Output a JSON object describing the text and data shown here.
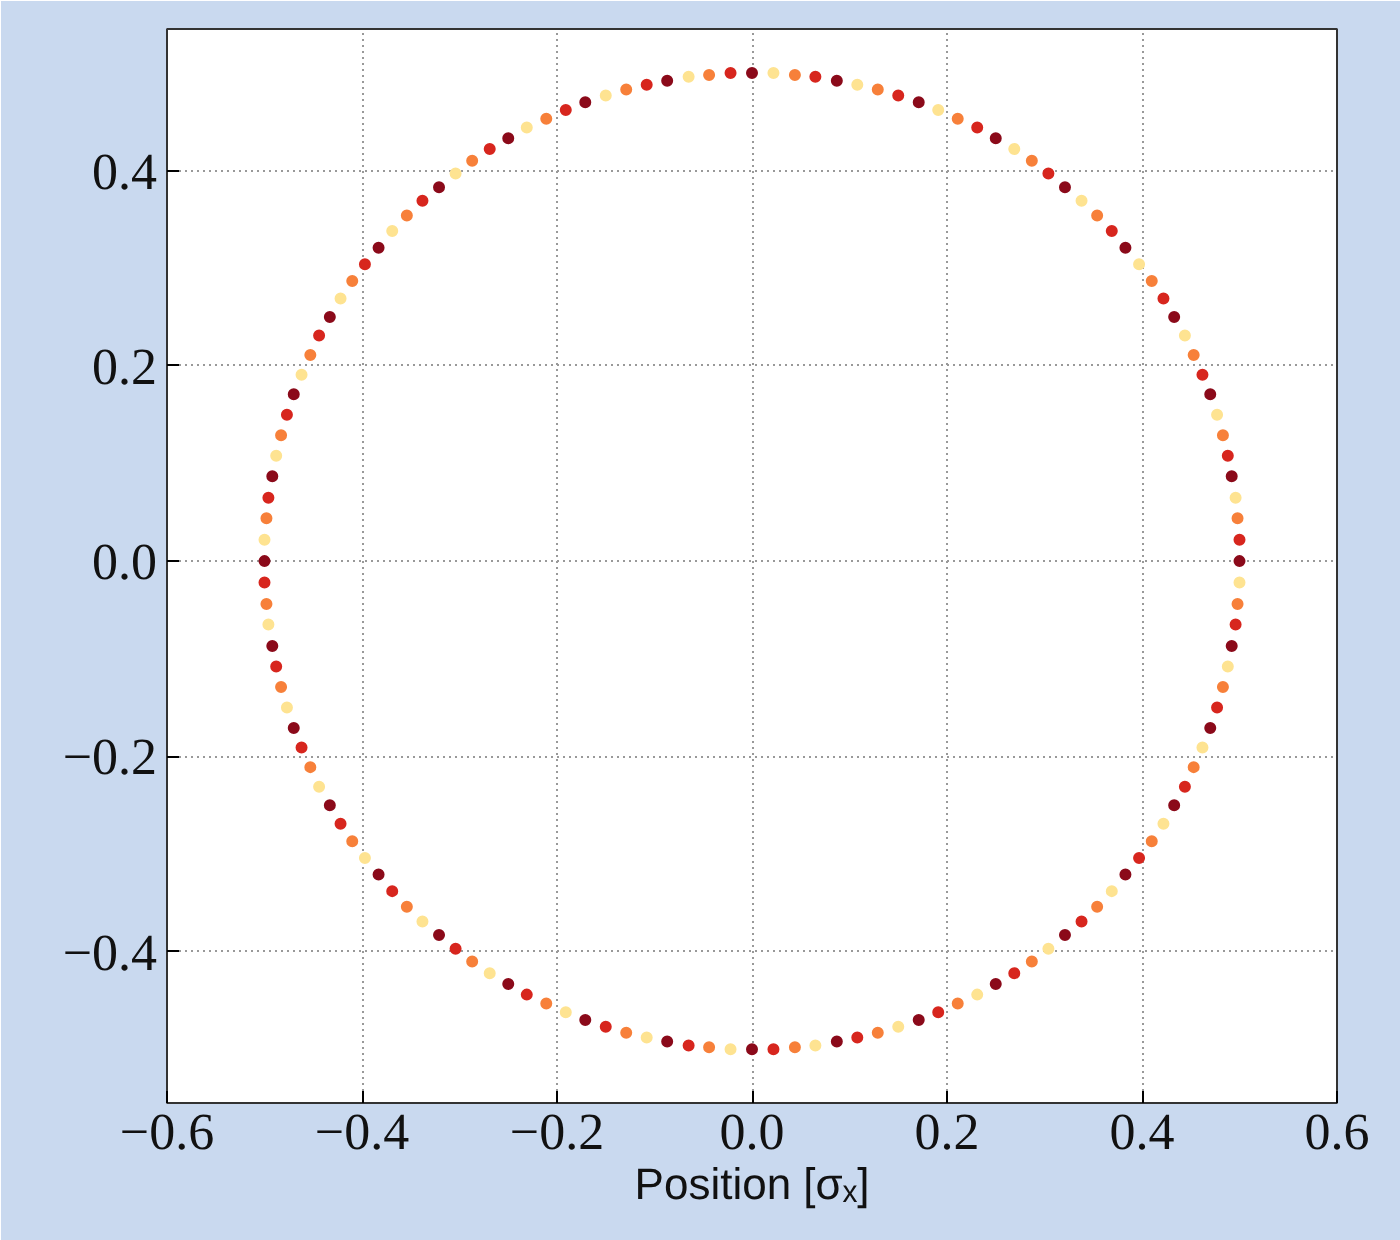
{
  "chart_data": {
    "type": "scatter",
    "xlabel": "Position [σₓ]",
    "xlim": [
      -0.6,
      0.6
    ],
    "ylim": [
      -0.555,
      0.545
    ],
    "xticks": [
      {
        "value": -0.6,
        "label": "−0.6"
      },
      {
        "value": -0.4,
        "label": "−0.4"
      },
      {
        "value": -0.2,
        "label": "−0.2"
      },
      {
        "value": 0.0,
        "label": "0.0"
      },
      {
        "value": 0.2,
        "label": "0.2"
      },
      {
        "value": 0.4,
        "label": "0.4"
      },
      {
        "value": 0.6,
        "label": "0.6"
      }
    ],
    "yticks": [
      {
        "value": -0.4,
        "label": "−0.4"
      },
      {
        "value": -0.2,
        "label": "−0.2"
      },
      {
        "value": 0.0,
        "label": "0.0"
      },
      {
        "value": 0.2,
        "label": "0.2"
      },
      {
        "value": 0.4,
        "label": "0.4"
      }
    ],
    "grid": true,
    "marker": "circle",
    "series": [
      {
        "color": "#fee391",
        "x": [
          0.496,
          0.477,
          0.444,
          0.397,
          0.338,
          0.269,
          0.191,
          0.108,
          0.022,
          -0.065,
          -0.15,
          -0.231,
          -0.304,
          -0.369,
          -0.422,
          -0.462,
          -0.488,
          -0.5,
          -0.496,
          -0.477,
          -0.444,
          -0.397,
          -0.338,
          -0.269,
          -0.191,
          -0.108,
          -0.022,
          0.065,
          0.15,
          0.231,
          0.304,
          0.369,
          0.422,
          0.462,
          0.488,
          0.5
        ],
        "values": [
          0.065,
          0.15,
          0.231,
          0.304,
          0.369,
          0.422,
          0.462,
          0.488,
          0.5,
          0.496,
          0.477,
          0.444,
          0.397,
          0.338,
          0.269,
          0.191,
          0.108,
          0.022,
          -0.065,
          -0.15,
          -0.231,
          -0.304,
          -0.369,
          -0.422,
          -0.462,
          -0.488,
          -0.5,
          -0.496,
          -0.477,
          -0.444,
          -0.397,
          -0.338,
          -0.269,
          -0.191,
          -0.108,
          -0.022
        ]
      },
      {
        "color": "#f7803a",
        "x": [
          0.498,
          0.483,
          0.453,
          0.41,
          0.354,
          0.287,
          0.211,
          0.129,
          0.044,
          -0.044,
          -0.129,
          -0.211,
          -0.287,
          -0.354,
          -0.41,
          -0.453,
          -0.483,
          -0.498,
          -0.498,
          -0.483,
          -0.453,
          -0.41,
          -0.354,
          -0.287,
          -0.211,
          -0.129,
          -0.044,
          0.044,
          0.129,
          0.211,
          0.287,
          0.354,
          0.41,
          0.453,
          0.483,
          0.498
        ],
        "values": [
          0.044,
          0.129,
          0.211,
          0.287,
          0.354,
          0.41,
          0.453,
          0.483,
          0.498,
          0.498,
          0.483,
          0.453,
          0.41,
          0.354,
          0.287,
          0.211,
          0.129,
          0.044,
          -0.044,
          -0.129,
          -0.211,
          -0.287,
          -0.354,
          -0.41,
          -0.453,
          -0.483,
          -0.498,
          -0.498,
          -0.483,
          -0.453,
          -0.41,
          -0.354,
          -0.287,
          -0.211,
          -0.129,
          -0.044
        ]
      },
      {
        "color": "#d7261e",
        "x": [
          0.5,
          0.488,
          0.462,
          0.422,
          0.369,
          0.304,
          0.231,
          0.15,
          0.065,
          -0.022,
          -0.108,
          -0.191,
          -0.269,
          -0.338,
          -0.397,
          -0.444,
          -0.477,
          -0.496,
          -0.5,
          -0.488,
          -0.462,
          -0.422,
          -0.369,
          -0.304,
          -0.231,
          -0.15,
          -0.065,
          0.022,
          0.108,
          0.191,
          0.269,
          0.338,
          0.397,
          0.444,
          0.477,
          0.496
        ],
        "values": [
          0.022,
          0.108,
          0.191,
          0.269,
          0.338,
          0.397,
          0.444,
          0.477,
          0.496,
          0.5,
          0.488,
          0.462,
          0.422,
          0.369,
          0.304,
          0.231,
          0.15,
          0.065,
          -0.022,
          -0.108,
          -0.191,
          -0.269,
          -0.338,
          -0.397,
          -0.444,
          -0.477,
          -0.496,
          -0.5,
          -0.488,
          -0.462,
          -0.422,
          -0.369,
          -0.304,
          -0.231,
          -0.15,
          -0.065
        ]
      },
      {
        "color": "#8b0a1a",
        "x": [
          0.5,
          0.492,
          0.47,
          0.433,
          0.383,
          0.321,
          0.25,
          0.171,
          0.087,
          0.0,
          -0.087,
          -0.171,
          -0.25,
          -0.321,
          -0.383,
          -0.433,
          -0.47,
          -0.492,
          -0.5,
          -0.492,
          -0.47,
          -0.433,
          -0.383,
          -0.321,
          -0.25,
          -0.171,
          -0.087,
          0.0,
          0.087,
          0.171,
          0.25,
          0.321,
          0.383,
          0.433,
          0.47,
          0.492
        ],
        "values": [
          0.0,
          0.087,
          0.171,
          0.25,
          0.321,
          0.383,
          0.433,
          0.47,
          0.492,
          0.5,
          0.492,
          0.47,
          0.433,
          0.383,
          0.321,
          0.25,
          0.171,
          0.087,
          0.0,
          -0.087,
          -0.171,
          -0.25,
          -0.321,
          -0.383,
          -0.433,
          -0.47,
          -0.492,
          -0.5,
          -0.492,
          -0.47,
          -0.433,
          -0.383,
          -0.321,
          -0.25,
          -0.171,
          -0.087
        ]
      }
    ]
  }
}
